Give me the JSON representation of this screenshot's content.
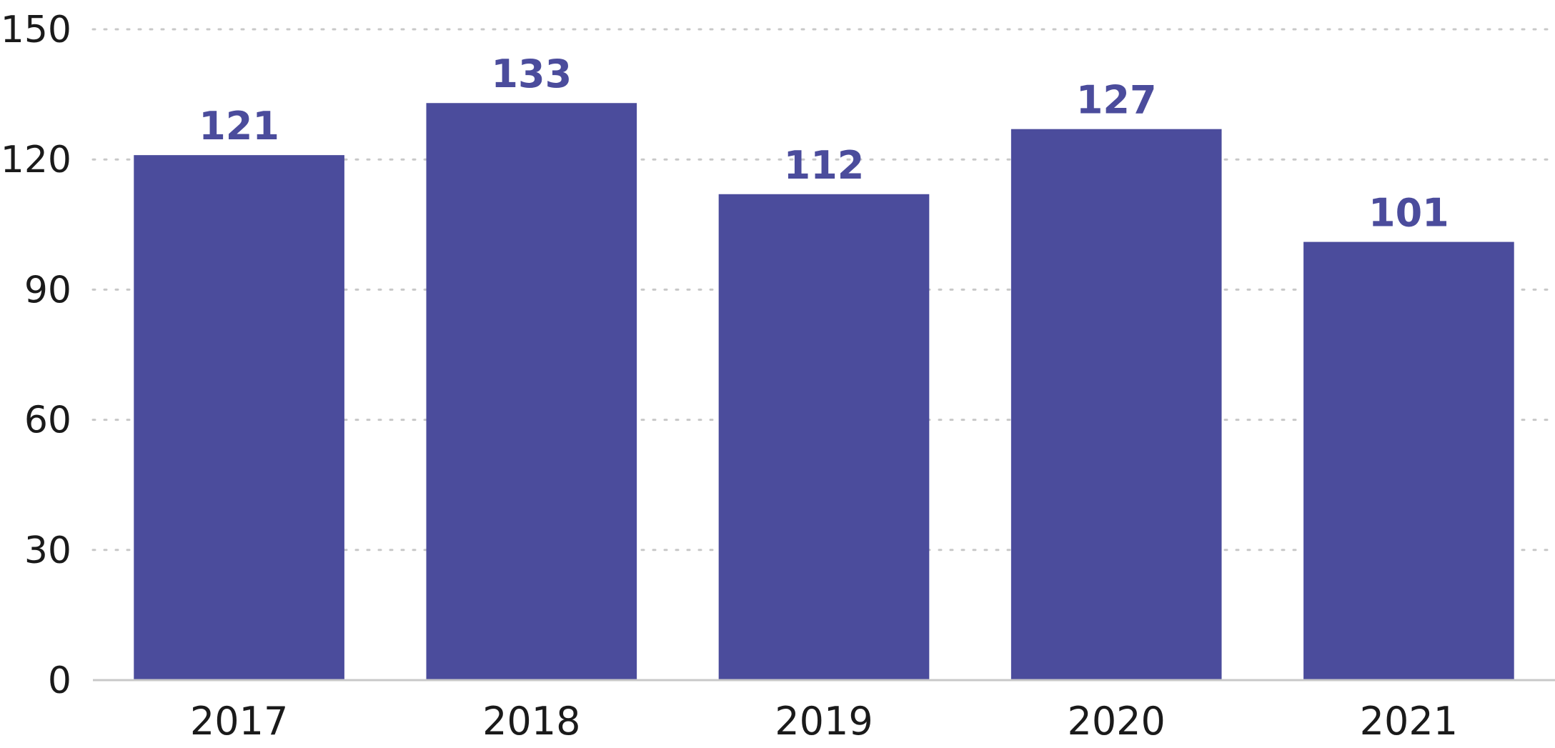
{
  "chart_data": {
    "type": "bar",
    "categories": [
      "2017",
      "2018",
      "2019",
      "2020",
      "2021"
    ],
    "values": [
      121,
      133,
      112,
      127,
      101
    ],
    "title": "",
    "xlabel": "",
    "ylabel": "",
    "ylim": [
      0,
      150
    ],
    "yticks": [
      0,
      30,
      60,
      90,
      120,
      150
    ],
    "grid": true,
    "legend": "none",
    "data_labels": true,
    "colors": {
      "bar": "#4b4c9c",
      "value_label": "#4b4c9c",
      "grid": "#c8c8c8",
      "axis": "#c8c8c8",
      "text": "#1a1a1a"
    }
  }
}
